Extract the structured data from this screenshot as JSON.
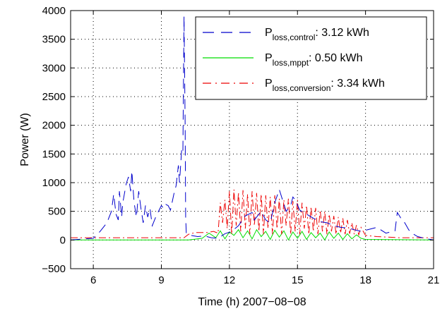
{
  "chart_data": {
    "type": "line",
    "xlabel": "Time (h) 2007−08−08",
    "ylabel": "Power (W)",
    "xlim": [
      5,
      21
    ],
    "ylim": [
      -500,
      4000
    ],
    "xticks": [
      6,
      9,
      12,
      15,
      18,
      21
    ],
    "yticks": [
      -500,
      0,
      500,
      1000,
      1500,
      2000,
      2500,
      3000,
      3500,
      4000
    ],
    "xtick_labels": [
      "6",
      "9",
      "12",
      "15",
      "18",
      "21"
    ],
    "ytick_labels": [
      "−500",
      "0",
      "500",
      "1000",
      "1500",
      "2000",
      "2500",
      "3000",
      "3500",
      "4000"
    ],
    "grid": true,
    "legend_position": "top-right",
    "series": [
      {
        "name": "P_loss,control: 3.12 kWh",
        "legend": {
          "base": "P",
          "sub": "loss,control",
          "suffix": ": 3.12 kWh"
        },
        "color": "#0000cc",
        "style": "dashed",
        "x": [
          5.0,
          6.0,
          6.3,
          6.6,
          6.8,
          6.9,
          7.0,
          7.1,
          7.15,
          7.25,
          7.3,
          7.45,
          7.55,
          7.65,
          7.7,
          7.8,
          7.9,
          8.0,
          8.1,
          8.2,
          8.3,
          8.4,
          8.5,
          8.6,
          8.75,
          8.9,
          9.0,
          9.1,
          9.2,
          9.3,
          9.4,
          9.55,
          9.65,
          9.75,
          9.8,
          9.9,
          9.95,
          10.0,
          10.05,
          10.07,
          10.1,
          10.3,
          10.6,
          10.9,
          11.2,
          11.5,
          11.8,
          12.1,
          12.4,
          12.7,
          13.0,
          13.1,
          13.2,
          13.4,
          13.6,
          13.8,
          14.0,
          14.2,
          14.5,
          14.7,
          14.8,
          14.9,
          15.1,
          15.4,
          15.7,
          16.0,
          16.3,
          16.6,
          16.9,
          17.2,
          17.5,
          17.8,
          18.0,
          18.5,
          18.9,
          19.3,
          19.4,
          19.5,
          19.6,
          19.7,
          19.8,
          19.9,
          20.0,
          20.3,
          20.7,
          21.0
        ],
        "y": [
          0,
          30,
          150,
          300,
          500,
          800,
          450,
          350,
          850,
          400,
          650,
          980,
          1100,
          850,
          1200,
          650,
          400,
          850,
          550,
          300,
          600,
          400,
          550,
          250,
          400,
          520,
          600,
          550,
          620,
          600,
          520,
          800,
          950,
          1300,
          1000,
          1600,
          1550,
          3900,
          2000,
          400,
          120,
          80,
          60,
          70,
          40,
          30,
          110,
          150,
          250,
          420,
          480,
          350,
          400,
          500,
          350,
          300,
          650,
          880,
          500,
          600,
          750,
          700,
          520,
          450,
          380,
          320,
          300,
          250,
          220,
          210,
          180,
          150,
          170,
          220,
          120,
          160,
          480,
          420,
          350,
          320,
          250,
          180,
          130,
          60,
          20,
          0
        ]
      },
      {
        "name": "P_loss,mppt: 0.50 kWh",
        "legend": {
          "base": "P",
          "sub": "loss,mppt",
          "suffix": ": 0.50 kWh"
        },
        "color": "#00dd00",
        "style": "solid",
        "x": [
          5.0,
          10.2,
          10.5,
          10.8,
          11.1,
          11.4,
          11.6,
          11.8,
          12.0,
          12.2,
          12.4,
          12.6,
          12.8,
          13.0,
          13.2,
          13.4,
          13.6,
          13.8,
          14.0,
          14.2,
          14.4,
          14.6,
          14.8,
          15.0,
          15.2,
          15.4,
          15.6,
          15.8,
          16.0,
          16.2,
          16.4,
          16.6,
          16.8,
          17.0,
          17.2,
          17.4,
          17.6,
          17.8,
          18.0,
          21.0
        ],
        "y": [
          0,
          0,
          15,
          30,
          120,
          40,
          160,
          20,
          140,
          80,
          180,
          40,
          160,
          20,
          180,
          60,
          150,
          10,
          170,
          50,
          160,
          0,
          140,
          30,
          150,
          10,
          130,
          40,
          120,
          0,
          140,
          30,
          120,
          10,
          110,
          20,
          90,
          30,
          10,
          0
        ]
      },
      {
        "name": "P_loss,conversion: 3.34 kWh",
        "legend": {
          "base": "P",
          "sub": "loss,conversion",
          "suffix": ": 3.34 kWh"
        },
        "color": "#ee0000",
        "style": "dashdot",
        "x": [
          5.0,
          5.5,
          6.5,
          8.0,
          9.5,
          10.0,
          10.2,
          10.5,
          11.0,
          11.3,
          11.5,
          11.6,
          11.7,
          11.8,
          11.9,
          12.0,
          12.1,
          12.2,
          12.3,
          12.4,
          12.5,
          12.6,
          12.7,
          12.8,
          12.9,
          13.0,
          13.1,
          13.2,
          13.3,
          13.4,
          13.5,
          13.6,
          13.7,
          13.8,
          13.9,
          14.0,
          14.1,
          14.2,
          14.3,
          14.4,
          14.5,
          14.6,
          14.7,
          14.8,
          14.9,
          15.0,
          15.1,
          15.2,
          15.3,
          15.4,
          15.5,
          15.6,
          15.7,
          15.8,
          15.9,
          16.0,
          16.1,
          16.2,
          16.3,
          16.4,
          16.5,
          16.6,
          16.7,
          16.8,
          16.9,
          17.0,
          17.1,
          17.2,
          17.3,
          17.4,
          17.5,
          17.6,
          17.7,
          17.8,
          18.0,
          18.5,
          19.0,
          19.5,
          20.0,
          20.5,
          21.0
        ],
        "y": [
          40,
          40,
          40,
          40,
          40,
          40,
          100,
          130,
          130,
          150,
          120,
          650,
          300,
          700,
          200,
          850,
          100,
          880,
          250,
          830,
          150,
          870,
          200,
          800,
          100,
          850,
          250,
          820,
          150,
          800,
          100,
          780,
          200,
          750,
          100,
          780,
          200,
          720,
          100,
          700,
          250,
          720,
          100,
          680,
          150,
          700,
          100,
          650,
          200,
          600,
          100,
          580,
          150,
          560,
          100,
          520,
          150,
          500,
          100,
          450,
          150,
          420,
          100,
          400,
          120,
          380,
          100,
          350,
          110,
          300,
          100,
          260,
          90,
          220,
          80,
          60,
          50,
          40,
          40,
          40,
          40
        ]
      }
    ]
  }
}
